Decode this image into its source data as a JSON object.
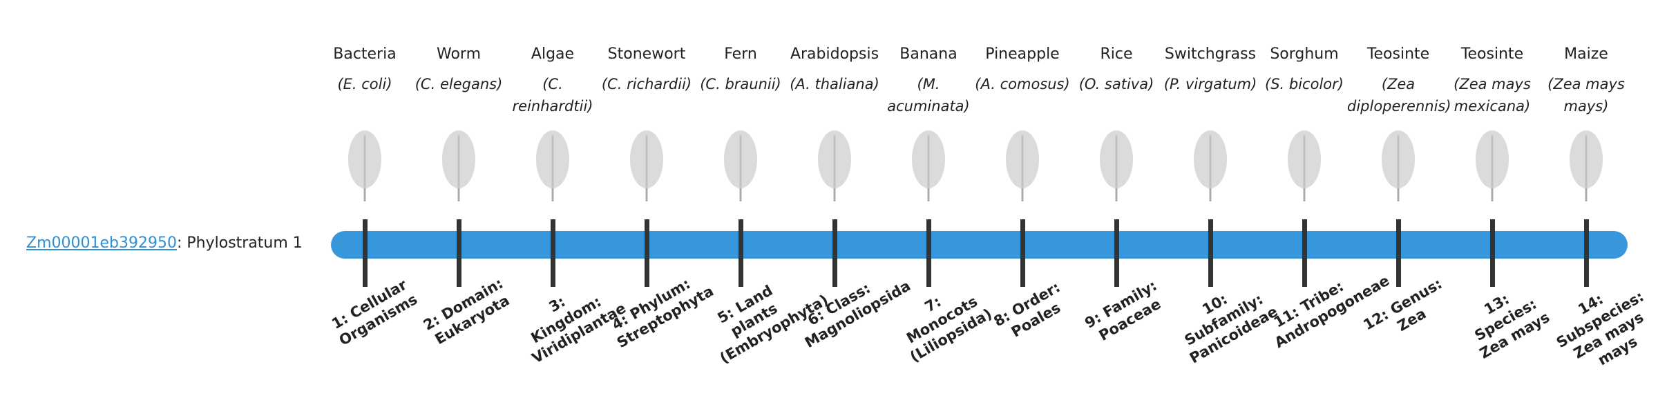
{
  "gene": {
    "id": "Zm00001eb392950",
    "label": ": Phylostratum 1"
  },
  "organisms": [
    {
      "name": "Bacteria",
      "species": "(E. coli)",
      "stratum": "1: Cellular Organisms"
    },
    {
      "name": "Worm",
      "species": "(C. elegans)",
      "stratum": "2: Domain: Eukaryota"
    },
    {
      "name": "Algae",
      "species": "(C. reinhardtii)",
      "stratum": "3: Kingdom: Viridiplantae"
    },
    {
      "name": "Stonewort",
      "species": "(C. richardii)",
      "stratum": "4: Phylum: Streptophyta"
    },
    {
      "name": "Fern",
      "species": "(C. braunii)",
      "stratum": "5: Land plants (Embryophyta)"
    },
    {
      "name": "Arabidopsis",
      "species": "(A. thaliana)",
      "stratum": "6: Class: Magnoliopsida"
    },
    {
      "name": "Banana",
      "species": "(M. acuminata)",
      "stratum": "7: Monocots (Liliopsida)"
    },
    {
      "name": "Pineapple",
      "species": "(A. comosus)",
      "stratum": "8: Order: Poales"
    },
    {
      "name": "Rice",
      "species": "(O. sativa)",
      "stratum": "9: Family: Poaceae"
    },
    {
      "name": "Switchgrass",
      "species": "(P. virgatum)",
      "stratum": "10: Subfamily: Panicoideae"
    },
    {
      "name": "Sorghum",
      "species": "(S. bicolor)",
      "stratum": "11: Tribe: Andropogoneae"
    },
    {
      "name": "Teosinte",
      "species": "(Zea diploperennis)",
      "stratum": "12: Genus: Zea"
    },
    {
      "name": "Teosinte",
      "species": "(Zea mays mexicana)",
      "stratum": "13: Species: Zea mays"
    },
    {
      "name": "Maize",
      "species": "(Zea mays mays)",
      "stratum": "14: Subspecies: Zea mays mays"
    }
  ]
}
